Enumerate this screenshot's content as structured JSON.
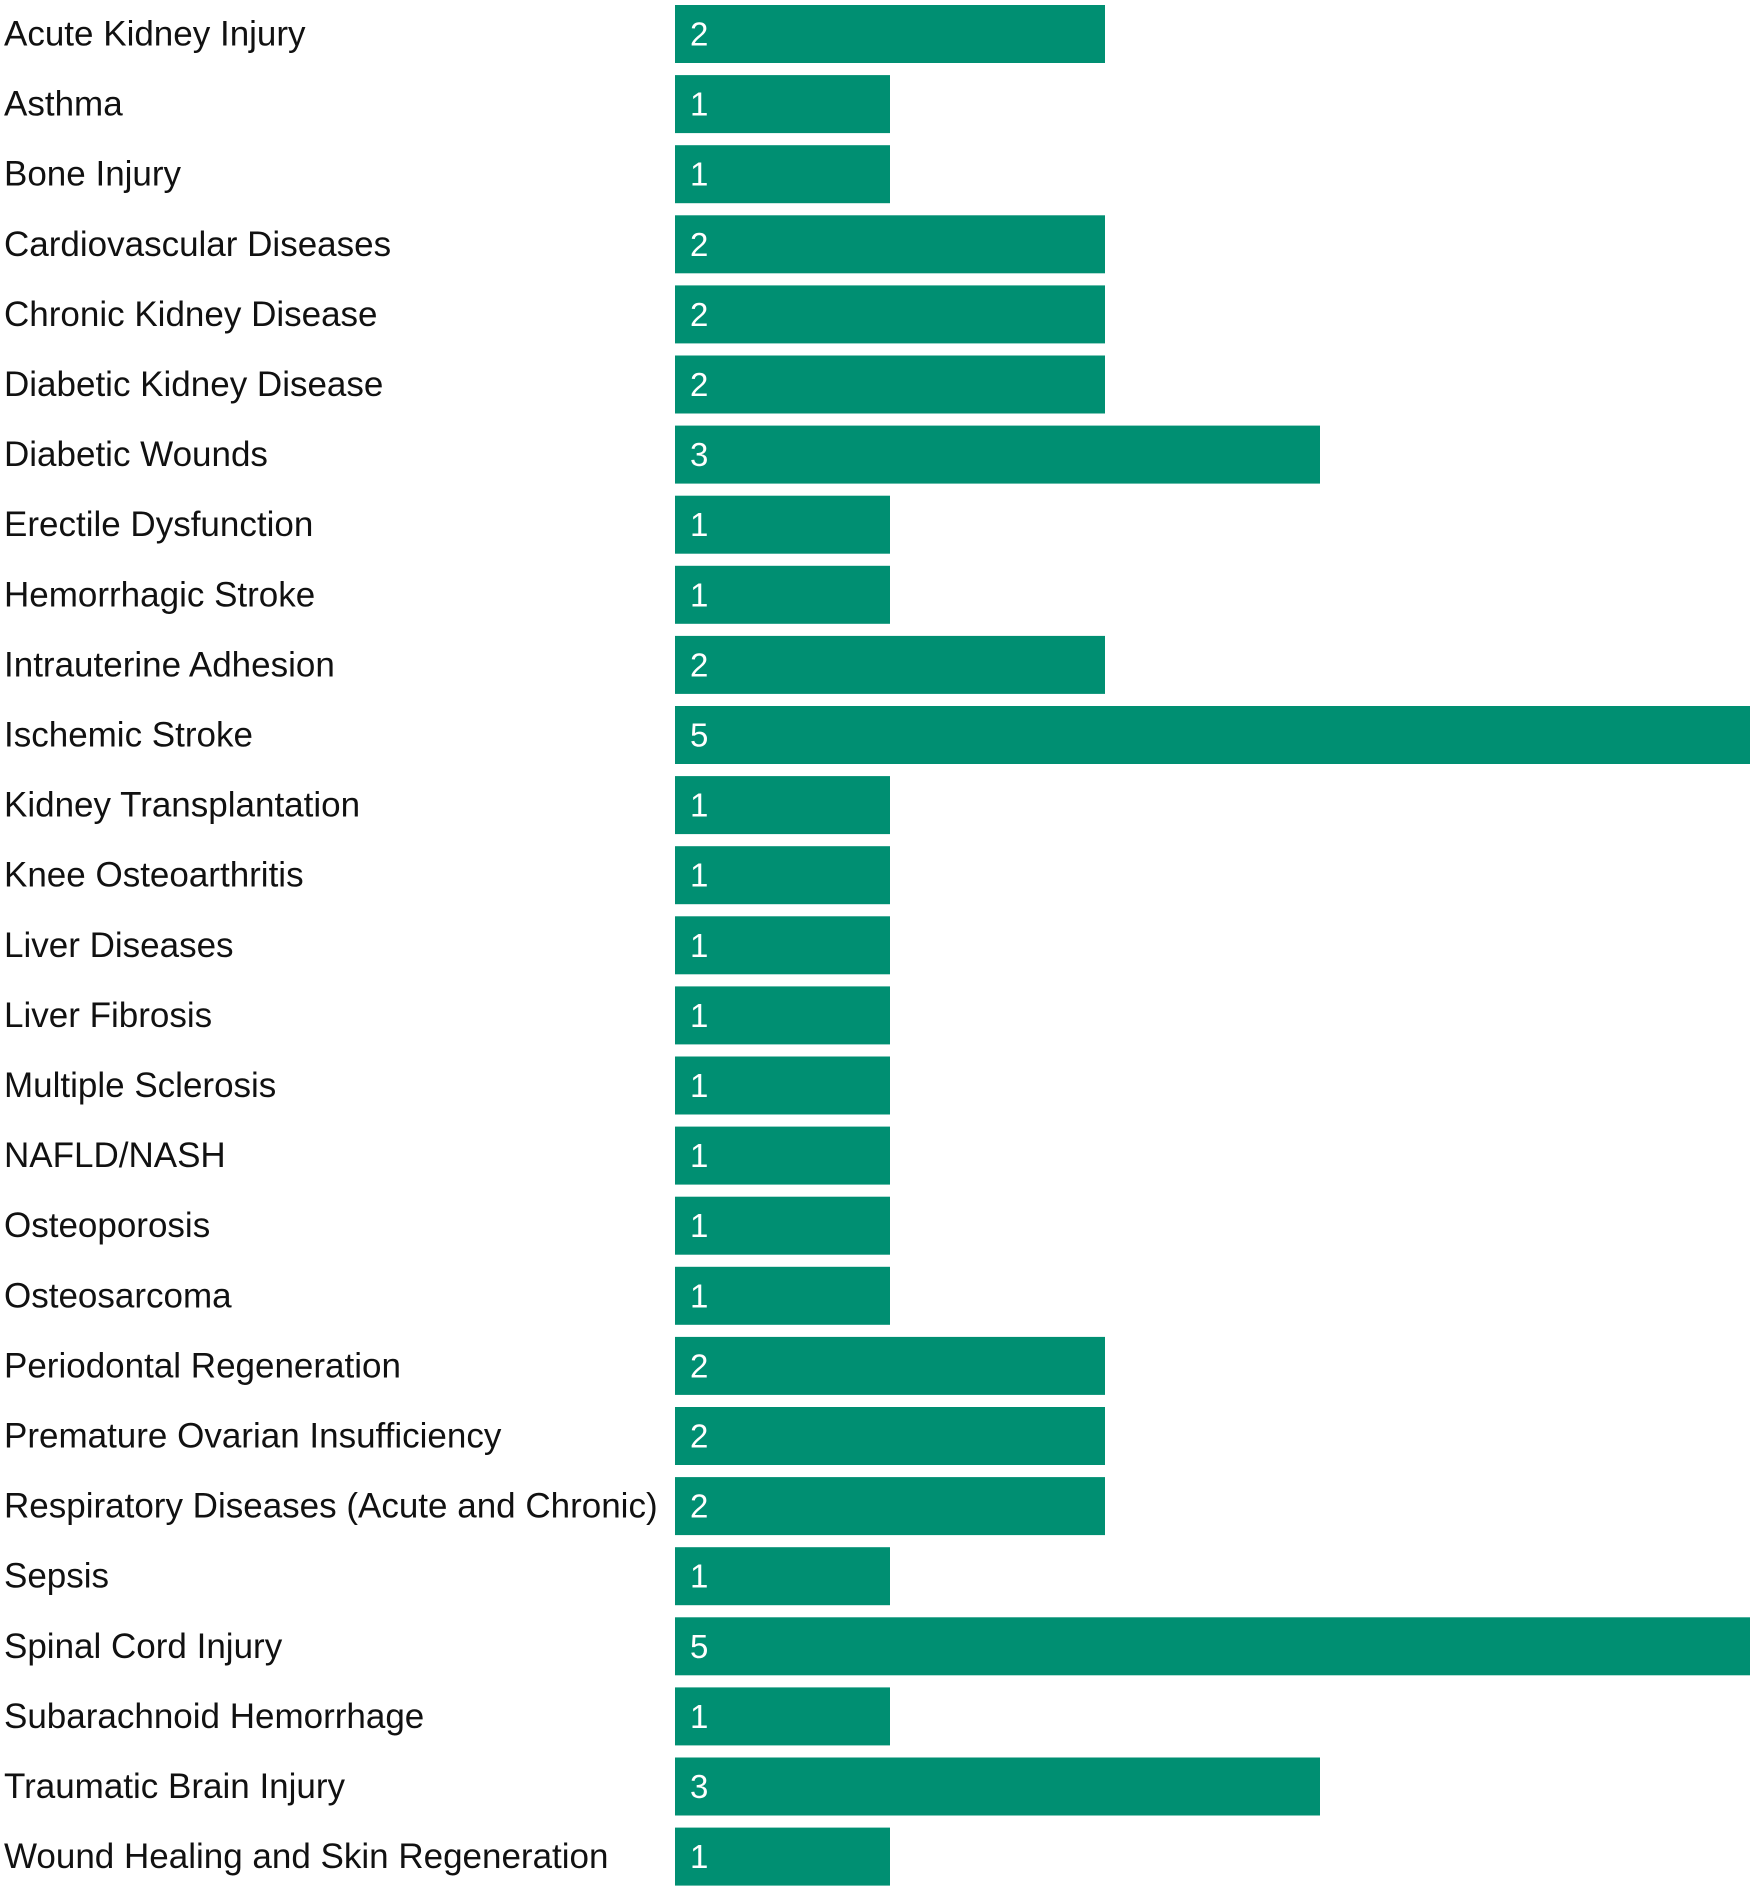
{
  "chart_data": {
    "type": "bar",
    "orientation": "horizontal",
    "categories": [
      "Acute Kidney Injury",
      "Asthma",
      "Bone Injury",
      "Cardiovascular Diseases",
      "Chronic Kidney Disease",
      "Diabetic Kidney Disease",
      "Diabetic Wounds",
      "Erectile Dysfunction",
      "Hemorrhagic Stroke",
      "Intrauterine Adhesion",
      "Ischemic Stroke",
      "Kidney Transplantation",
      "Knee Osteoarthritis",
      "Liver Diseases",
      "Liver Fibrosis",
      "Multiple Sclerosis",
      "NAFLD/NASH",
      "Osteoporosis",
      "Osteosarcoma",
      "Periodontal Regeneration",
      "Premature Ovarian Insufficiency",
      "Respiratory Diseases (Acute and Chronic)",
      "Sepsis",
      "Spinal Cord Injury",
      "Subarachnoid Hemorrhage",
      "Traumatic Brain Injury",
      "Wound Healing and Skin Regeneration"
    ],
    "values": [
      2,
      1,
      1,
      2,
      2,
      2,
      3,
      1,
      1,
      2,
      5,
      1,
      1,
      1,
      1,
      1,
      1,
      1,
      1,
      2,
      2,
      2,
      1,
      5,
      1,
      3,
      1
    ],
    "title": "",
    "xlabel": "",
    "ylabel": "",
    "xlim": [
      0,
      5
    ],
    "grid": false,
    "legend": "none",
    "data_labels": "inside-start",
    "bar_color": "#008f72",
    "label_color": "#ffffff"
  }
}
